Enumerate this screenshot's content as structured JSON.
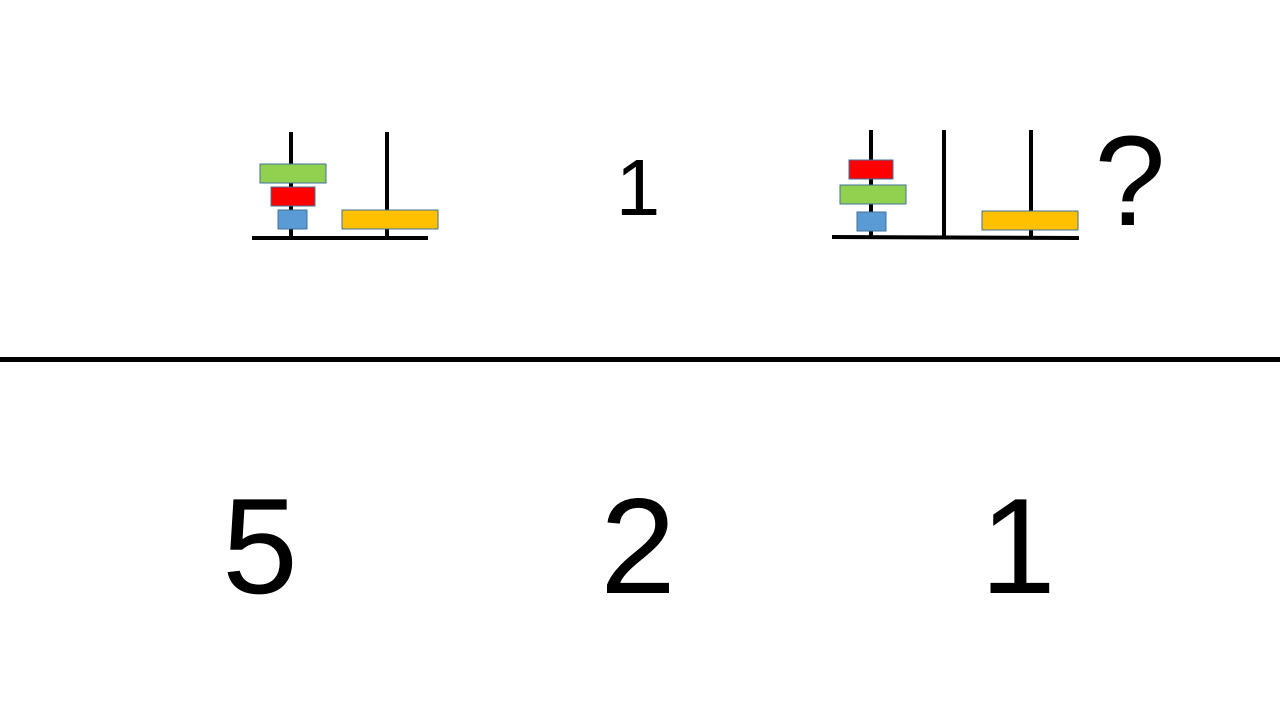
{
  "puzzle": {
    "example_moves": "1",
    "question_mark": "?",
    "colors": {
      "green": "#92d050",
      "red": "#ff0000",
      "blue": "#5b9bd5",
      "yellow": "#ffc000",
      "outline": "#41719c",
      "peg": "#000000"
    },
    "example_state": {
      "pegs": [
        [
          "blue",
          "red",
          "green"
        ],
        [
          "yellow"
        ]
      ]
    },
    "question_state": {
      "pegs": [
        [
          "blue",
          "green",
          "red"
        ],
        [],
        [
          "yellow"
        ]
      ]
    }
  },
  "options": [
    {
      "label": "5"
    },
    {
      "label": "2"
    },
    {
      "label": "1"
    }
  ]
}
